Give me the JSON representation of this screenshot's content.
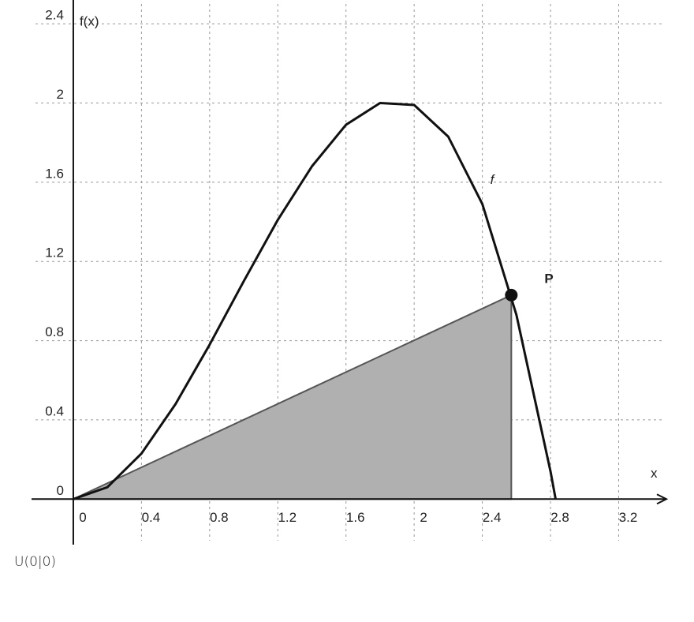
{
  "chart_data": {
    "type": "line",
    "ylabel": "f(x)",
    "xlabel": "x",
    "xlim": [
      -0.245,
      3.48
    ],
    "ylim": [
      -0.23,
      2.52
    ],
    "xticks": [
      0,
      0.4,
      0.8,
      1.2,
      1.6,
      2,
      2.4,
      2.8,
      3.2
    ],
    "yticks": [
      0,
      0.4,
      0.8,
      1.2,
      1.6,
      2,
      2.4
    ],
    "grid": true,
    "series": [
      {
        "name": "f",
        "color": "#111",
        "x": [
          0,
          0.2,
          0.4,
          0.6,
          0.8,
          1.0,
          1.2,
          1.4,
          1.6,
          1.8,
          2.0,
          2.2,
          2.4,
          2.6,
          2.8,
          2.83
        ],
        "values": [
          0,
          0.06,
          0.23,
          0.48,
          0.78,
          1.1,
          1.41,
          1.68,
          1.89,
          2.0,
          1.99,
          1.83,
          1.49,
          0.93,
          0.14,
          0
        ]
      }
    ],
    "triangle": {
      "color": "#b0b0b0",
      "x": [
        0,
        2.57,
        2.57
      ],
      "values": [
        0,
        1.03,
        0
      ]
    },
    "point": {
      "label": "P",
      "x": 2.57,
      "y": 1.03
    },
    "annotation": "U(0|0)"
  }
}
